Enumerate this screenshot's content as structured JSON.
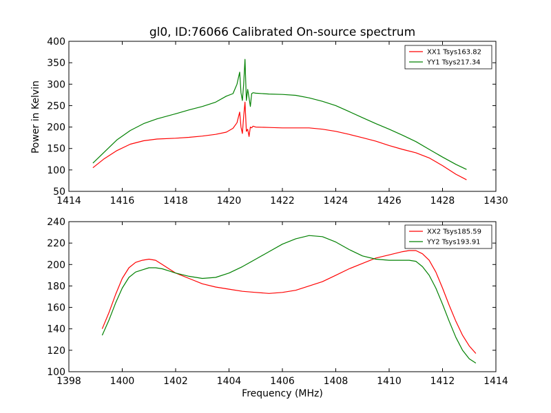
{
  "chart_data": [
    {
      "type": "line",
      "title": "gl0, ID:76066 Calibrated On-source spectrum",
      "xlabel": "",
      "ylabel": "Power in Kelvin",
      "xlim": [
        1414,
        1430
      ],
      "ylim": [
        50,
        400
      ],
      "xticks": [
        1414,
        1416,
        1418,
        1420,
        1422,
        1424,
        1426,
        1428,
        1430
      ],
      "yticks": [
        50,
        100,
        150,
        200,
        250,
        300,
        350,
        400
      ],
      "legend": "top-right",
      "grid": false,
      "series": [
        {
          "name": "XX1 Tsys163.82",
          "color": "#ff0000",
          "x": [
            1414.9,
            1415.3,
            1415.8,
            1416.3,
            1416.8,
            1417.3,
            1418.0,
            1418.5,
            1419.0,
            1419.5,
            1419.9,
            1420.15,
            1420.3,
            1420.4,
            1420.45,
            1420.5,
            1420.55,
            1420.6,
            1420.65,
            1420.7,
            1420.75,
            1420.8,
            1420.85,
            1420.9,
            1421.0,
            1421.5,
            1422.0,
            1422.5,
            1423.0,
            1423.5,
            1424.0,
            1424.5,
            1425.0,
            1425.5,
            1426.0,
            1426.5,
            1427.0,
            1427.5,
            1428.0,
            1428.5,
            1428.9
          ],
          "values": [
            105,
            125,
            145,
            160,
            168,
            172,
            174,
            176,
            179,
            183,
            188,
            197,
            210,
            235,
            200,
            185,
            225,
            258,
            190,
            195,
            178,
            200,
            198,
            202,
            200,
            199,
            198,
            198,
            198,
            195,
            190,
            183,
            175,
            167,
            157,
            148,
            140,
            128,
            110,
            90,
            77
          ]
        },
        {
          "name": "YY1 Tsys217.34",
          "color": "#008000",
          "x": [
            1414.9,
            1415.3,
            1415.8,
            1416.3,
            1416.8,
            1417.3,
            1418.0,
            1418.5,
            1419.0,
            1419.5,
            1419.9,
            1420.15,
            1420.3,
            1420.4,
            1420.45,
            1420.5,
            1420.55,
            1420.6,
            1420.65,
            1420.7,
            1420.75,
            1420.8,
            1420.85,
            1420.9,
            1421.0,
            1421.5,
            1422.0,
            1422.5,
            1423.0,
            1423.5,
            1424.0,
            1424.5,
            1425.0,
            1425.5,
            1426.0,
            1426.5,
            1427.0,
            1427.5,
            1428.0,
            1428.5,
            1428.9
          ],
          "values": [
            116,
            140,
            170,
            192,
            208,
            219,
            231,
            240,
            248,
            258,
            272,
            278,
            300,
            328,
            280,
            262,
            300,
            358,
            262,
            288,
            268,
            248,
            278,
            280,
            279,
            277,
            276,
            274,
            268,
            260,
            250,
            236,
            222,
            208,
            195,
            181,
            166,
            148,
            130,
            113,
            101
          ]
        }
      ]
    },
    {
      "type": "line",
      "title": "",
      "xlabel": "Frequency (MHz)",
      "ylabel": "",
      "xlim": [
        1398,
        1414
      ],
      "ylim": [
        100,
        240
      ],
      "xticks": [
        1398,
        1400,
        1402,
        1404,
        1406,
        1408,
        1410,
        1412,
        1414
      ],
      "yticks": [
        100,
        120,
        140,
        160,
        180,
        200,
        220,
        240
      ],
      "legend": "top-right",
      "grid": false,
      "series": [
        {
          "name": "XX2 Tsys185.59",
          "color": "#ff0000",
          "x": [
            1399.25,
            1399.5,
            1399.75,
            1400.0,
            1400.25,
            1400.5,
            1400.75,
            1401.0,
            1401.25,
            1401.5,
            1401.75,
            1402.0,
            1402.5,
            1403.0,
            1403.5,
            1404.0,
            1404.5,
            1405.0,
            1405.5,
            1406.0,
            1406.5,
            1407.0,
            1407.5,
            1408.0,
            1408.5,
            1409.0,
            1409.5,
            1410.0,
            1410.5,
            1410.75,
            1411.0,
            1411.25,
            1411.5,
            1411.75,
            1412.0,
            1412.25,
            1412.5,
            1412.75,
            1413.0,
            1413.25
          ],
          "values": [
            140,
            155,
            172,
            187,
            197,
            202,
            204,
            205,
            204,
            200,
            196,
            192,
            187,
            182,
            179,
            177,
            175,
            174,
            173,
            174,
            176,
            180,
            184,
            190,
            196,
            201,
            206,
            209,
            212,
            213,
            213,
            210,
            204,
            193,
            178,
            162,
            147,
            134,
            124,
            117
          ]
        },
        {
          "name": "YY2 Tsys193.91",
          "color": "#008000",
          "x": [
            1399.25,
            1399.5,
            1399.75,
            1400.0,
            1400.25,
            1400.5,
            1400.75,
            1401.0,
            1401.25,
            1401.5,
            1401.75,
            1402.0,
            1402.5,
            1403.0,
            1403.5,
            1404.0,
            1404.5,
            1405.0,
            1405.5,
            1406.0,
            1406.5,
            1407.0,
            1407.5,
            1408.0,
            1408.5,
            1409.0,
            1409.5,
            1410.0,
            1410.5,
            1410.75,
            1411.0,
            1411.25,
            1411.5,
            1411.75,
            1412.0,
            1412.25,
            1412.5,
            1412.75,
            1413.0,
            1413.25
          ],
          "values": [
            134,
            148,
            164,
            178,
            188,
            193,
            195,
            197,
            197,
            196,
            194,
            192,
            189,
            187,
            188,
            192,
            198,
            205,
            212,
            219,
            224,
            227,
            226,
            221,
            214,
            208,
            205,
            204,
            204,
            204,
            203,
            198,
            190,
            178,
            163,
            147,
            132,
            120,
            112,
            108
          ]
        }
      ]
    }
  ]
}
